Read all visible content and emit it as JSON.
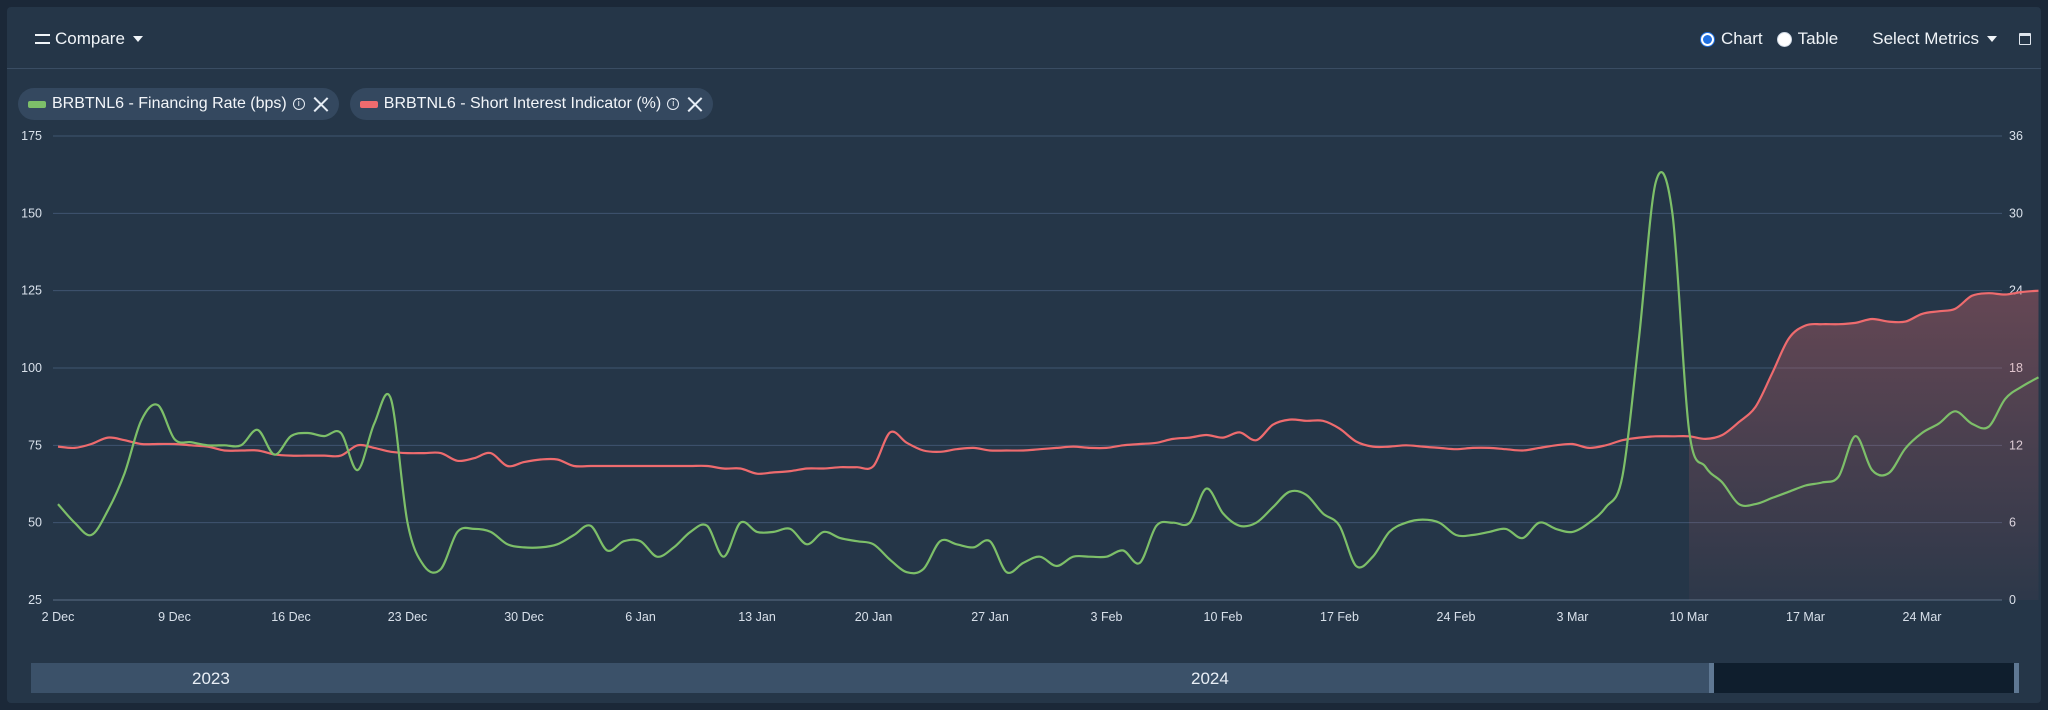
{
  "toolbar": {
    "compare_label": "Compare",
    "chart_label": "Chart",
    "table_label": "Table",
    "view_mode": "Chart",
    "metrics_label": "Select Metrics"
  },
  "legend": [
    {
      "label": "BRBTNL6 - Financing Rate (bps)",
      "color": "#7dbf69"
    },
    {
      "label": "BRBTNL6 - Short Interest Indicator (%)",
      "color": "#ee6b6e"
    }
  ],
  "navigator": {
    "years": [
      "2023",
      "2024"
    ]
  },
  "chart_data": {
    "type": "line",
    "x_ticks": [
      "2 Dec",
      "9 Dec",
      "16 Dec",
      "23 Dec",
      "30 Dec",
      "6 Jan",
      "13 Jan",
      "20 Jan",
      "27 Jan",
      "3 Feb",
      "10 Feb",
      "17 Feb",
      "24 Feb",
      "3 Mar",
      "10 Mar",
      "17 Mar",
      "24 Mar"
    ],
    "x_range": [
      "2023-12-02",
      "2024-03-30"
    ],
    "y_left": {
      "ticks": [
        25,
        50,
        75,
        100,
        125,
        150,
        175
      ],
      "range": [
        25,
        175
      ]
    },
    "y_right": {
      "ticks": [
        0,
        6,
        12,
        18,
        24,
        30,
        36
      ],
      "range": [
        0,
        36
      ]
    },
    "grid": true,
    "series": [
      {
        "name": "BRBTNL6 - Financing Rate (bps)",
        "axis": "left",
        "color": "#7dbf69",
        "points": [
          [
            "2023-12-02",
            56
          ],
          [
            "2023-12-03",
            50
          ],
          [
            "2023-12-04",
            46
          ],
          [
            "2023-12-05",
            54
          ],
          [
            "2023-12-06",
            66
          ],
          [
            "2023-12-07",
            83
          ],
          [
            "2023-12-08",
            88
          ],
          [
            "2023-12-09",
            77
          ],
          [
            "2023-12-10",
            76
          ],
          [
            "2023-12-11",
            75
          ],
          [
            "2023-12-12",
            75
          ],
          [
            "2023-12-13",
            75
          ],
          [
            "2023-12-14",
            80
          ],
          [
            "2023-12-15",
            72
          ],
          [
            "2023-12-16",
            78
          ],
          [
            "2023-12-17",
            79
          ],
          [
            "2023-12-18",
            78
          ],
          [
            "2023-12-19",
            79
          ],
          [
            "2023-12-20",
            67
          ],
          [
            "2023-12-21",
            82
          ],
          [
            "2023-12-22",
            90
          ],
          [
            "2023-12-23",
            50
          ],
          [
            "2023-12-24",
            36
          ],
          [
            "2023-12-25",
            35
          ],
          [
            "2023-12-26",
            47
          ],
          [
            "2023-12-27",
            48
          ],
          [
            "2023-12-28",
            47
          ],
          [
            "2023-12-29",
            43
          ],
          [
            "2023-12-30",
            42
          ],
          [
            "2023-12-31",
            42
          ],
          [
            "2024-01-01",
            43
          ],
          [
            "2024-01-02",
            46
          ],
          [
            "2024-01-03",
            49
          ],
          [
            "2024-01-04",
            41
          ],
          [
            "2024-01-05",
            44
          ],
          [
            "2024-01-06",
            44
          ],
          [
            "2024-01-07",
            39
          ],
          [
            "2024-01-08",
            42
          ],
          [
            "2024-01-09",
            47
          ],
          [
            "2024-01-10",
            49
          ],
          [
            "2024-01-11",
            39
          ],
          [
            "2024-01-12",
            50
          ],
          [
            "2024-01-13",
            47
          ],
          [
            "2024-01-14",
            47
          ],
          [
            "2024-01-15",
            48
          ],
          [
            "2024-01-16",
            43
          ],
          [
            "2024-01-17",
            47
          ],
          [
            "2024-01-18",
            45
          ],
          [
            "2024-01-19",
            44
          ],
          [
            "2024-01-20",
            43
          ],
          [
            "2024-01-21",
            38
          ],
          [
            "2024-01-22",
            34
          ],
          [
            "2024-01-23",
            35
          ],
          [
            "2024-01-24",
            44
          ],
          [
            "2024-01-25",
            43
          ],
          [
            "2024-01-26",
            42
          ],
          [
            "2024-01-27",
            44
          ],
          [
            "2024-01-28",
            34
          ],
          [
            "2024-01-29",
            37
          ],
          [
            "2024-01-30",
            39
          ],
          [
            "2024-01-31",
            36
          ],
          [
            "2024-02-01",
            39
          ],
          [
            "2024-02-02",
            39
          ],
          [
            "2024-02-03",
            39
          ],
          [
            "2024-02-04",
            41
          ],
          [
            "2024-02-05",
            37
          ],
          [
            "2024-02-06",
            49
          ],
          [
            "2024-02-07",
            50
          ],
          [
            "2024-02-08",
            50
          ],
          [
            "2024-02-09",
            61
          ],
          [
            "2024-02-10",
            53
          ],
          [
            "2024-02-11",
            49
          ],
          [
            "2024-02-12",
            50
          ],
          [
            "2024-02-13",
            55
          ],
          [
            "2024-02-14",
            60
          ],
          [
            "2024-02-15",
            59
          ],
          [
            "2024-02-16",
            53
          ],
          [
            "2024-02-17",
            49
          ],
          [
            "2024-02-18",
            36
          ],
          [
            "2024-02-19",
            39
          ],
          [
            "2024-02-20",
            47
          ],
          [
            "2024-02-21",
            50
          ],
          [
            "2024-02-22",
            51
          ],
          [
            "2024-02-23",
            50
          ],
          [
            "2024-02-24",
            46
          ],
          [
            "2024-02-25",
            46
          ],
          [
            "2024-02-26",
            47
          ],
          [
            "2024-02-27",
            48
          ],
          [
            "2024-02-28",
            45
          ],
          [
            "2024-02-29",
            50
          ],
          [
            "2024-03-01",
            48
          ],
          [
            "2024-03-02",
            47
          ],
          [
            "2024-03-03",
            50
          ],
          [
            "2024-03-04",
            55
          ],
          [
            "2024-03-05",
            65
          ],
          [
            "2024-03-06",
            110
          ],
          [
            "2024-03-07",
            160
          ],
          [
            "2024-03-08",
            150
          ],
          [
            "2024-03-09",
            80
          ],
          [
            "2024-03-10",
            68
          ],
          [
            "2024-03-11",
            63
          ],
          [
            "2024-03-12",
            56
          ],
          [
            "2024-03-13",
            56
          ],
          [
            "2024-03-14",
            58
          ],
          [
            "2024-03-15",
            60
          ],
          [
            "2024-03-16",
            62
          ],
          [
            "2024-03-17",
            63
          ],
          [
            "2024-03-18",
            65
          ],
          [
            "2024-03-19",
            78
          ],
          [
            "2024-03-20",
            67
          ],
          [
            "2024-03-21",
            66
          ],
          [
            "2024-03-22",
            74
          ],
          [
            "2024-03-23",
            79
          ],
          [
            "2024-03-24",
            82
          ],
          [
            "2024-03-25",
            86
          ],
          [
            "2024-03-26",
            82
          ],
          [
            "2024-03-27",
            81
          ],
          [
            "2024-03-28",
            90
          ],
          [
            "2024-03-29",
            94
          ],
          [
            "2024-03-30",
            97
          ]
        ]
      },
      {
        "name": "BRBTNL6 - Short Interest Indicator (%)",
        "axis": "right",
        "color": "#ee6b6e",
        "points": [
          [
            "2023-12-02",
            11.9
          ],
          [
            "2023-12-03",
            11.8
          ],
          [
            "2023-12-04",
            12.1
          ],
          [
            "2023-12-05",
            12.6
          ],
          [
            "2023-12-06",
            12.4
          ],
          [
            "2023-12-07",
            12.1
          ],
          [
            "2023-12-08",
            12.1
          ],
          [
            "2023-12-09",
            12.1
          ],
          [
            "2023-12-10",
            12.0
          ],
          [
            "2023-12-11",
            11.9
          ],
          [
            "2023-12-12",
            11.6
          ],
          [
            "2023-12-13",
            11.6
          ],
          [
            "2023-12-14",
            11.6
          ],
          [
            "2023-12-15",
            11.3
          ],
          [
            "2023-12-16",
            11.2
          ],
          [
            "2023-12-17",
            11.2
          ],
          [
            "2023-12-18",
            11.2
          ],
          [
            "2023-12-19",
            11.2
          ],
          [
            "2023-12-20",
            12.0
          ],
          [
            "2023-12-21",
            11.8
          ],
          [
            "2023-12-22",
            11.5
          ],
          [
            "2023-12-23",
            11.4
          ],
          [
            "2023-12-24",
            11.4
          ],
          [
            "2023-12-25",
            11.4
          ],
          [
            "2023-12-26",
            10.8
          ],
          [
            "2023-12-27",
            11.0
          ],
          [
            "2023-12-28",
            11.4
          ],
          [
            "2023-12-29",
            10.4
          ],
          [
            "2023-12-30",
            10.7
          ],
          [
            "2023-12-31",
            10.9
          ],
          [
            "2024-01-01",
            10.9
          ],
          [
            "2024-01-02",
            10.4
          ],
          [
            "2024-01-03",
            10.4
          ],
          [
            "2024-01-04",
            10.4
          ],
          [
            "2024-01-05",
            10.4
          ],
          [
            "2024-01-06",
            10.4
          ],
          [
            "2024-01-07",
            10.4
          ],
          [
            "2024-01-08",
            10.4
          ],
          [
            "2024-01-09",
            10.4
          ],
          [
            "2024-01-10",
            10.4
          ],
          [
            "2024-01-11",
            10.2
          ],
          [
            "2024-01-12",
            10.2
          ],
          [
            "2024-01-13",
            9.8
          ],
          [
            "2024-01-14",
            9.9
          ],
          [
            "2024-01-15",
            10.0
          ],
          [
            "2024-01-16",
            10.2
          ],
          [
            "2024-01-17",
            10.2
          ],
          [
            "2024-01-18",
            10.3
          ],
          [
            "2024-01-19",
            10.3
          ],
          [
            "2024-01-20",
            10.4
          ],
          [
            "2024-01-21",
            13.0
          ],
          [
            "2024-01-22",
            12.2
          ],
          [
            "2024-01-23",
            11.6
          ],
          [
            "2024-01-24",
            11.5
          ],
          [
            "2024-01-25",
            11.7
          ],
          [
            "2024-01-26",
            11.8
          ],
          [
            "2024-01-27",
            11.6
          ],
          [
            "2024-01-28",
            11.6
          ],
          [
            "2024-01-29",
            11.6
          ],
          [
            "2024-01-30",
            11.7
          ],
          [
            "2024-01-31",
            11.8
          ],
          [
            "2024-02-01",
            11.9
          ],
          [
            "2024-02-02",
            11.8
          ],
          [
            "2024-02-03",
            11.8
          ],
          [
            "2024-02-04",
            12.0
          ],
          [
            "2024-02-05",
            12.1
          ],
          [
            "2024-02-06",
            12.2
          ],
          [
            "2024-02-07",
            12.5
          ],
          [
            "2024-02-08",
            12.6
          ],
          [
            "2024-02-09",
            12.8
          ],
          [
            "2024-02-10",
            12.6
          ],
          [
            "2024-02-11",
            13.0
          ],
          [
            "2024-02-12",
            12.4
          ],
          [
            "2024-02-13",
            13.6
          ],
          [
            "2024-02-14",
            14.0
          ],
          [
            "2024-02-15",
            13.9
          ],
          [
            "2024-02-16",
            13.9
          ],
          [
            "2024-02-17",
            13.3
          ],
          [
            "2024-02-18",
            12.3
          ],
          [
            "2024-02-19",
            11.9
          ],
          [
            "2024-02-20",
            11.9
          ],
          [
            "2024-02-21",
            12.0
          ],
          [
            "2024-02-22",
            11.9
          ],
          [
            "2024-02-23",
            11.8
          ],
          [
            "2024-02-24",
            11.7
          ],
          [
            "2024-02-25",
            11.8
          ],
          [
            "2024-02-26",
            11.8
          ],
          [
            "2024-02-27",
            11.7
          ],
          [
            "2024-02-28",
            11.6
          ],
          [
            "2024-02-29",
            11.8
          ],
          [
            "2024-03-01",
            12.0
          ],
          [
            "2024-03-02",
            12.1
          ],
          [
            "2024-03-03",
            11.8
          ],
          [
            "2024-03-04",
            12.0
          ],
          [
            "2024-03-05",
            12.4
          ],
          [
            "2024-03-06",
            12.6
          ],
          [
            "2024-03-07",
            12.7
          ],
          [
            "2024-03-08",
            12.7
          ],
          [
            "2024-03-09",
            12.7
          ],
          [
            "2024-03-10",
            12.5
          ],
          [
            "2024-03-11",
            12.8
          ],
          [
            "2024-03-12",
            13.8
          ],
          [
            "2024-03-13",
            15.0
          ],
          [
            "2024-03-14",
            17.6
          ],
          [
            "2024-03-15",
            20.3
          ],
          [
            "2024-03-16",
            21.3
          ],
          [
            "2024-03-17",
            21.4
          ],
          [
            "2024-03-18",
            21.4
          ],
          [
            "2024-03-19",
            21.5
          ],
          [
            "2024-03-20",
            21.8
          ],
          [
            "2024-03-21",
            21.6
          ],
          [
            "2024-03-22",
            21.6
          ],
          [
            "2024-03-23",
            22.2
          ],
          [
            "2024-03-24",
            22.4
          ],
          [
            "2024-03-25",
            22.6
          ],
          [
            "2024-03-26",
            23.6
          ],
          [
            "2024-03-27",
            23.8
          ],
          [
            "2024-03-28",
            23.7
          ],
          [
            "2024-03-29",
            23.9
          ],
          [
            "2024-03-30",
            24.0
          ]
        ],
        "shaded_area_from": "2024-03-09"
      }
    ]
  }
}
